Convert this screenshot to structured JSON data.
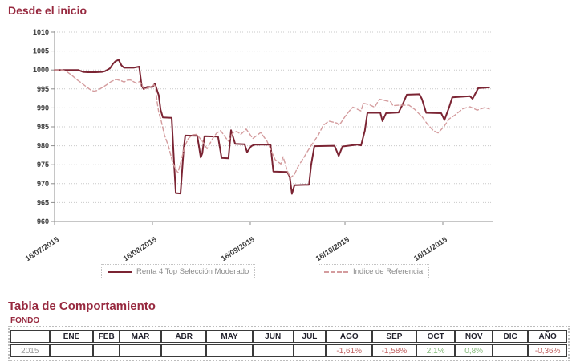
{
  "header": {
    "title": "Desde el inicio"
  },
  "chart_data": {
    "type": "line",
    "title": "Desde el inicio",
    "x_unit": "days since 16/07/2015",
    "xlim": [
      0,
      138.5
    ],
    "ylim": [
      960,
      1010
    ],
    "y_tick_step": 5,
    "grid": "horizontal-dotted",
    "legend_position": "bottom",
    "x_ticks": [
      {
        "day": 0,
        "label": "16/07/2015"
      },
      {
        "day": 31,
        "label": "16/08/2015"
      },
      {
        "day": 62,
        "label": "16/09/2015"
      },
      {
        "day": 92,
        "label": "16/10/2015"
      },
      {
        "day": 123,
        "label": "16/11/2015"
      }
    ],
    "series": [
      {
        "name": "Renta 4 Top Selección Moderado",
        "color": "#7b2433",
        "style": "solid",
        "points": [
          [
            0,
            1000
          ],
          [
            4,
            1000
          ],
          [
            7.5,
            1000
          ],
          [
            9,
            999.5
          ],
          [
            10.5,
            999.4
          ],
          [
            13,
            999.4
          ],
          [
            15,
            999.5
          ],
          [
            16,
            999.7
          ],
          [
            17.5,
            1000.4
          ],
          [
            18.5,
            1001.6
          ],
          [
            19.3,
            1002.3
          ],
          [
            20.3,
            1002.7
          ],
          [
            21.2,
            1001.2
          ],
          [
            22,
            1000.6
          ],
          [
            25,
            1000.6
          ],
          [
            26.8,
            1000.9
          ],
          [
            27.6,
            995.8
          ],
          [
            28.2,
            995.0
          ],
          [
            29.3,
            995.5
          ],
          [
            31,
            995.5
          ],
          [
            31.8,
            996.4
          ],
          [
            33,
            993.3
          ],
          [
            33.6,
            989.5
          ],
          [
            34.3,
            987.5
          ],
          [
            37.1,
            987.4
          ],
          [
            37.9,
            975.0
          ],
          [
            38.4,
            967.5
          ],
          [
            39.9,
            967.4
          ],
          [
            40.9,
            979.0
          ],
          [
            41.4,
            982.7
          ],
          [
            45.2,
            982.6
          ],
          [
            46.3,
            976.9
          ],
          [
            46.8,
            978.0
          ],
          [
            47.5,
            982.5
          ],
          [
            51.8,
            982.4
          ],
          [
            52.9,
            976.8
          ],
          [
            55.1,
            976.7
          ],
          [
            55.9,
            984.1
          ],
          [
            57.2,
            980.5
          ],
          [
            60.2,
            980.4
          ],
          [
            61,
            978.3
          ],
          [
            62.3,
            979.9
          ],
          [
            63.3,
            980.3
          ],
          [
            68.4,
            980.3
          ],
          [
            69.3,
            973.2
          ],
          [
            73.7,
            973.1
          ],
          [
            74.5,
            971.8
          ],
          [
            75.2,
            967.3
          ],
          [
            76,
            969.6
          ],
          [
            80.6,
            969.7
          ],
          [
            81.3,
            975.0
          ],
          [
            82.3,
            979.9
          ],
          [
            88.7,
            980.0
          ],
          [
            90,
            977.3
          ],
          [
            91.2,
            979.8
          ],
          [
            95.8,
            980.3
          ],
          [
            97.1,
            980.1
          ],
          [
            98.3,
            984.0
          ],
          [
            99.1,
            988.7
          ],
          [
            103.2,
            988.7
          ],
          [
            103.9,
            986.5
          ],
          [
            105,
            988.6
          ],
          [
            109,
            988.8
          ],
          [
            110.3,
            991.0
          ],
          [
            111.6,
            993.5
          ],
          [
            115.6,
            993.6
          ],
          [
            116.4,
            992.3
          ],
          [
            117.7,
            988.7
          ],
          [
            122.5,
            988.6
          ],
          [
            123.5,
            986.8
          ],
          [
            125,
            990.2
          ],
          [
            126,
            992.8
          ],
          [
            131.6,
            993.1
          ],
          [
            132.4,
            992.4
          ],
          [
            134.2,
            995.2
          ],
          [
            137.7,
            995.4
          ]
        ]
      },
      {
        "name": "Indice de Referencia",
        "color": "#d49c9e",
        "style": "dashed",
        "points": [
          [
            0,
            1000
          ],
          [
            2.5,
            1000
          ],
          [
            4,
            999.5
          ],
          [
            5.5,
            998.6
          ],
          [
            7,
            997.5
          ],
          [
            8.5,
            996.6
          ],
          [
            10,
            995.6
          ],
          [
            11.5,
            994.7
          ],
          [
            12.5,
            994.4
          ],
          [
            13.5,
            994.6
          ],
          [
            15,
            995.3
          ],
          [
            16.5,
            996.1
          ],
          [
            18,
            997.0
          ],
          [
            19.5,
            997.5
          ],
          [
            21,
            997.2
          ],
          [
            22,
            996.8
          ],
          [
            23,
            997.3
          ],
          [
            24,
            997.4
          ],
          [
            25,
            996.9
          ],
          [
            26,
            996.5
          ],
          [
            27,
            997.0
          ],
          [
            27.8,
            995.8
          ],
          [
            28.6,
            994.9
          ],
          [
            29.5,
            995.2
          ],
          [
            30.3,
            995.5
          ],
          [
            31,
            995.8
          ],
          [
            31.5,
            996.1
          ],
          [
            32,
            995.5
          ],
          [
            32.5,
            991.5
          ],
          [
            33,
            988.8
          ],
          [
            33.8,
            986.5
          ],
          [
            34.8,
            982.9
          ],
          [
            36.1,
            979.8
          ],
          [
            37.4,
            975.6
          ],
          [
            38.6,
            973.5
          ],
          [
            39.1,
            972.9
          ],
          [
            40.4,
            977.1
          ],
          [
            41.2,
            979.8
          ],
          [
            42.4,
            981.9
          ],
          [
            43.7,
            982.9
          ],
          [
            45,
            983.0
          ],
          [
            46.8,
            981.2
          ],
          [
            48.3,
            979.2
          ],
          [
            50.1,
            981.9
          ],
          [
            51.3,
            983.3
          ],
          [
            52.6,
            984.0
          ],
          [
            54.4,
            981.9
          ],
          [
            55.1,
            981.2
          ],
          [
            56.4,
            983.3
          ],
          [
            57.7,
            983.8
          ],
          [
            59,
            983.0
          ],
          [
            60.7,
            984.4
          ],
          [
            62.8,
            981.9
          ],
          [
            65.3,
            983.5
          ],
          [
            67.3,
            981.2
          ],
          [
            69.9,
            976.3
          ],
          [
            71.7,
            975.2
          ],
          [
            72.4,
            977.1
          ],
          [
            73.7,
            973.5
          ],
          [
            74.7,
            971.5
          ],
          [
            76,
            972.5
          ],
          [
            77.2,
            974.6
          ],
          [
            78.5,
            976.3
          ],
          [
            81.1,
            979.8
          ],
          [
            83.6,
            982.9
          ],
          [
            85.1,
            985.4
          ],
          [
            86.9,
            986.5
          ],
          [
            89.4,
            986.0
          ],
          [
            90.2,
            985.4
          ],
          [
            92,
            987.7
          ],
          [
            93.8,
            989.6
          ],
          [
            94.5,
            990.2
          ],
          [
            97.1,
            989.2
          ],
          [
            97.8,
            991.2
          ],
          [
            99.6,
            990.9
          ],
          [
            101.4,
            990.2
          ],
          [
            102.9,
            992.3
          ],
          [
            106.5,
            991.6
          ],
          [
            107.2,
            990.6
          ],
          [
            109,
            990.7
          ],
          [
            112.3,
            990.7
          ],
          [
            114.1,
            989.6
          ],
          [
            116.6,
            987.5
          ],
          [
            118.2,
            985.6
          ],
          [
            120,
            984.0
          ],
          [
            121.5,
            983.4
          ],
          [
            123.3,
            985.0
          ],
          [
            125,
            987.1
          ],
          [
            126.8,
            988.1
          ],
          [
            129.4,
            989.8
          ],
          [
            131.6,
            990.3
          ],
          [
            133.9,
            989.4
          ],
          [
            136.4,
            990.1
          ],
          [
            137.7,
            989.7
          ]
        ]
      }
    ]
  },
  "table": {
    "title": "Tabla de Comportamiento",
    "subtitle": "FONDO",
    "columns": [
      "",
      "ENE",
      "FEB",
      "MAR",
      "ABR",
      "MAY",
      "JUN",
      "JUL",
      "AGO",
      "SEP",
      "OCT",
      "NOV",
      "DIC",
      "AÑO"
    ],
    "rows": [
      {
        "label": "2015",
        "values": [
          "",
          "",
          "",
          "",
          "",
          "",
          "",
          "-1,61%",
          "-1,58%",
          "2,1%",
          "0,8%",
          "",
          "-0,36%"
        ]
      }
    ],
    "value_colors": {
      "negative": "#c0605f",
      "positive": "#83b878",
      "row_label": "#9a9a9a"
    }
  },
  "theme": {
    "accent": "#97293f",
    "axis": "#8c8c8c",
    "grid": "#c9c9c9",
    "tick_label": "#3c3c3c",
    "legend_text": "#8a8a8a"
  }
}
